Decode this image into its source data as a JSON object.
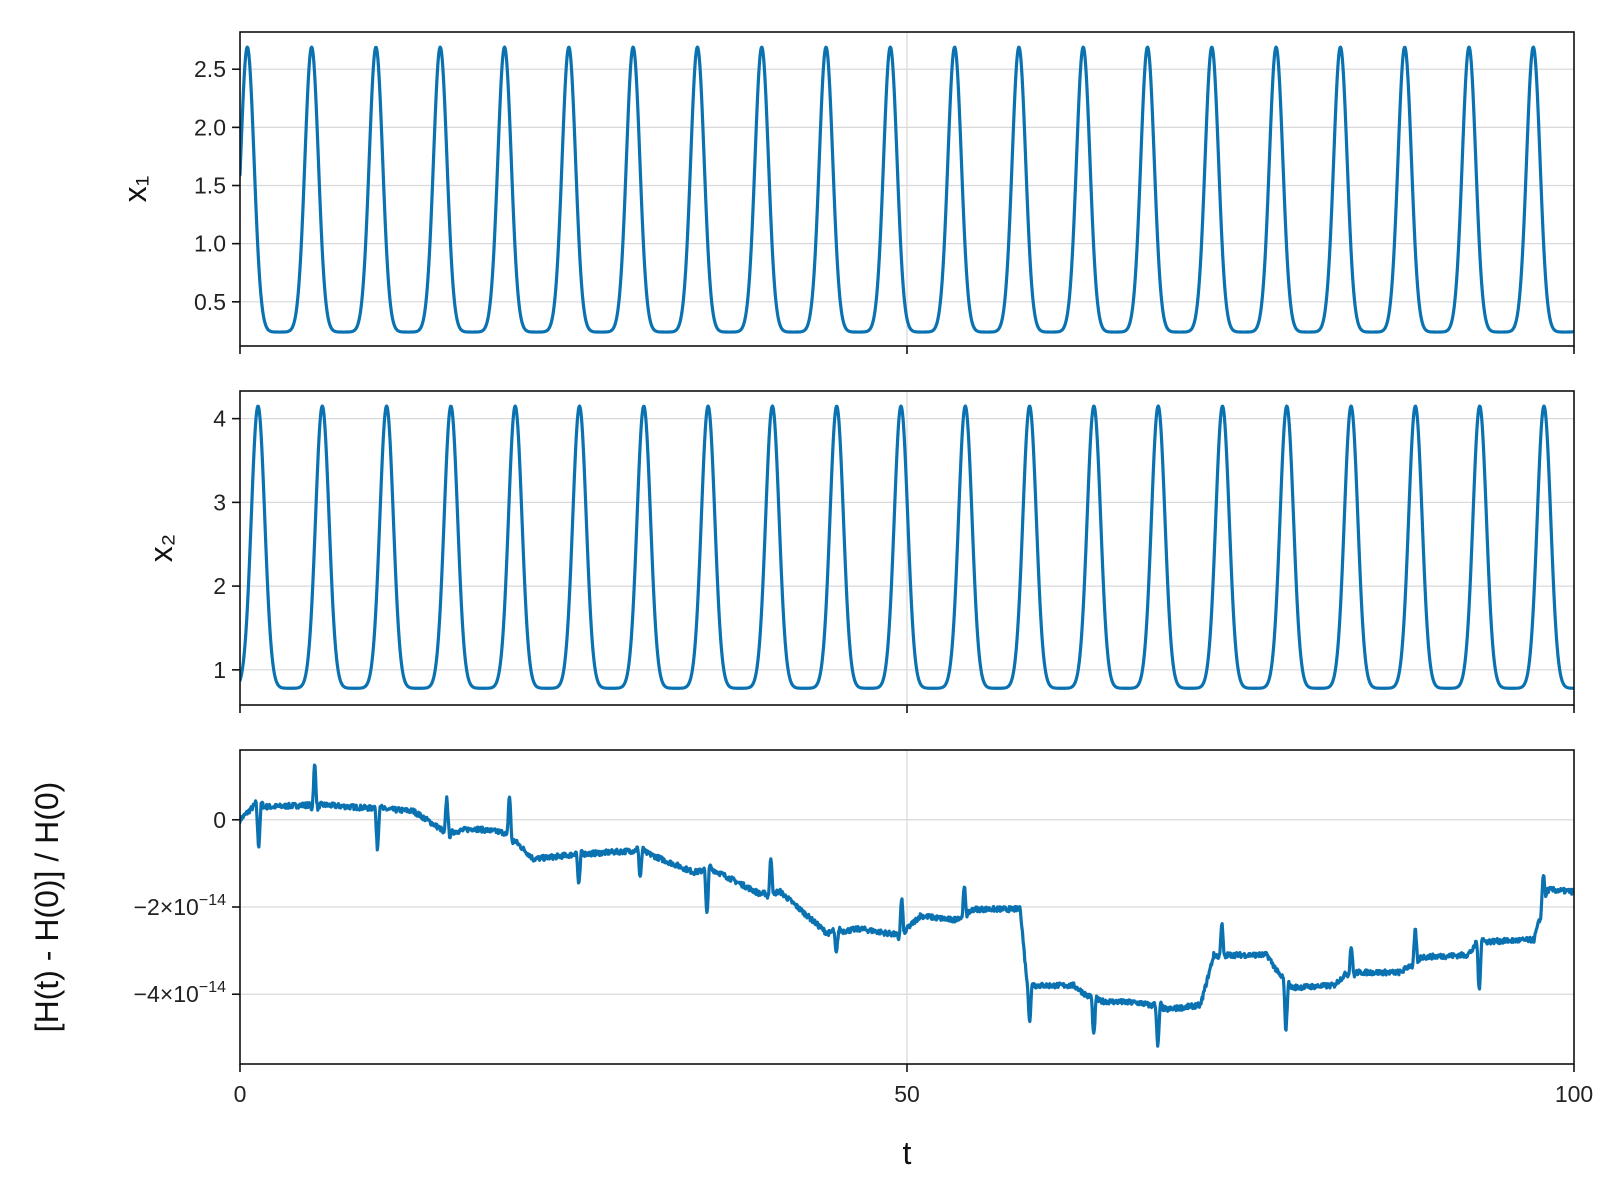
{
  "colors": {
    "series": "#0a72b1",
    "frame": "#111111",
    "grid": "#d9d9d9"
  },
  "chart_data": [
    {
      "type": "line",
      "title": "",
      "xlabel": "",
      "ylabel": "x₁",
      "xlim": [
        0,
        100
      ],
      "ylim": [
        0.12,
        2.82
      ],
      "yticks": [
        0.5,
        1.0,
        1.5,
        2.0,
        2.5
      ],
      "ytick_labels": [
        "0.5",
        "1.0",
        "1.5",
        "2.0",
        "2.5"
      ],
      "xticks": [
        0,
        50,
        100
      ],
      "show_xtick_labels": false,
      "grid": true,
      "series": [
        {
          "style": "periodic",
          "x": [
            0,
            0.5,
            1.0,
            2.0,
            3.5,
            4.6,
            5.2,
            5.4,
            5.6,
            6.0
          ],
          "values": [
            2.0,
            2.6,
            2.4,
            0.75,
            0.25,
            0.45,
            1.6,
            2.35,
            2.7,
            2.3
          ],
          "period": 4.82,
          "peak_times": [
            0.55,
            5.37,
            10.19,
            15.01,
            19.83,
            24.65,
            29.47,
            34.29,
            39.11,
            43.93,
            48.75,
            53.57,
            58.39,
            63.21,
            68.03,
            72.85,
            77.67,
            82.49,
            87.31,
            92.13,
            96.95
          ],
          "max": 2.69,
          "min": 0.24,
          "end_value": 0.37
        }
      ]
    },
    {
      "type": "line",
      "title": "",
      "xlabel": "",
      "ylabel": "x₂",
      "xlim": [
        0,
        100
      ],
      "ylim": [
        0.58,
        4.33
      ],
      "yticks": [
        1,
        2,
        3,
        4
      ],
      "ytick_labels": [
        "1",
        "2",
        "3",
        "4"
      ],
      "xticks": [
        0,
        50,
        100
      ],
      "show_xtick_labels": false,
      "grid": true,
      "series": [
        {
          "style": "periodic",
          "peak_times": [
            1.35,
            6.17,
            10.99,
            15.81,
            20.63,
            25.45,
            30.27,
            35.09,
            39.91,
            44.73,
            49.55,
            54.37,
            59.19,
            64.01,
            68.83,
            73.65,
            78.47,
            83.29,
            88.11,
            92.93,
            97.75
          ],
          "max": 4.15,
          "min": 0.78,
          "start_value": 1.0,
          "end_value": 1.1
        }
      ]
    },
    {
      "type": "line",
      "title": "",
      "xlabel": "t",
      "ylabel": "[H(t) - H(0)] / H(0)",
      "xlim": [
        0,
        100
      ],
      "ylim": [
        -5.6e-14,
        1.6e-14
      ],
      "yticks": [
        0,
        -2e-14,
        -4e-14
      ],
      "ytick_labels": [
        {
          "mantissa": "0",
          "exponent": ""
        },
        {
          "mantissa": "−2×10",
          "exponent": "−14"
        },
        {
          "mantissa": "−4×10",
          "exponent": "−14"
        }
      ],
      "xticks": [
        0,
        50,
        100
      ],
      "xtick_labels": [
        "0",
        "50",
        "100"
      ],
      "grid": true,
      "series": [
        {
          "style": "step-drift",
          "x": [
            0,
            1.0,
            2.5,
            5.8,
            10.5,
            13.0,
            15.5,
            17.5,
            20.0,
            22.0,
            25.0,
            30.0,
            34.0,
            35.5,
            39.0,
            40.5,
            44.0,
            46.5,
            49.5,
            51.0,
            53.5,
            55.0,
            58.5,
            59.0,
            62.5,
            64.0,
            67.5,
            69.5,
            72.0,
            73.0,
            77.0,
            78.5,
            82.0,
            83.0,
            87.0,
            88.5,
            92.0,
            93.0,
            97.0,
            98.0,
            100.0
          ],
          "values": [
            0.0,
            3e-15,
            3e-15,
            3.5e-15,
            2.5e-15,
            2e-15,
            -3e-15,
            -2e-15,
            -3e-15,
            -9e-15,
            -8e-15,
            -7e-15,
            -1.2e-14,
            -1.15e-14,
            -1.7e-14,
            -1.65e-14,
            -2.6e-14,
            -2.5e-14,
            -2.65e-14,
            -2.2e-14,
            -2.3e-14,
            -2.05e-14,
            -2.05e-14,
            -3.8e-14,
            -3.8e-14,
            -4.15e-14,
            -4.2e-14,
            -4.35e-14,
            -4.25e-14,
            -3.1e-14,
            -3.1e-14,
            -3.85e-14,
            -3.8e-14,
            -3.5e-14,
            -3.5e-14,
            -3.15e-14,
            -3.1e-14,
            -2.8e-14,
            -2.75e-14,
            -1.6e-14,
            -1.65e-14
          ],
          "spikes": [
            {
              "t": 1.4,
              "amp": -9e-15
            },
            {
              "t": 5.6,
              "amp": 9e-15
            },
            {
              "t": 10.3,
              "amp": -9e-15
            },
            {
              "t": 15.5,
              "amp": 8e-15
            },
            {
              "t": 20.2,
              "amp": 9e-15
            },
            {
              "t": 25.4,
              "amp": -7e-15
            },
            {
              "t": 30.0,
              "amp": -6e-15
            },
            {
              "t": 35.0,
              "amp": -1e-14
            },
            {
              "t": 39.8,
              "amp": 8e-15
            },
            {
              "t": 44.7,
              "amp": -5e-15
            },
            {
              "t": 49.6,
              "amp": 8e-15
            },
            {
              "t": 54.3,
              "amp": 6e-15
            },
            {
              "t": 59.2,
              "amp": -8e-15
            },
            {
              "t": 64.0,
              "amp": -8e-15
            },
            {
              "t": 68.8,
              "amp": -9e-15
            },
            {
              "t": 73.6,
              "amp": 7e-15
            },
            {
              "t": 78.4,
              "amp": -1e-14
            },
            {
              "t": 83.3,
              "amp": 6e-15
            },
            {
              "t": 88.1,
              "amp": 7e-15
            },
            {
              "t": 92.9,
              "amp": -1.1e-14
            },
            {
              "t": 97.7,
              "amp": 7e-15
            }
          ]
        }
      ]
    }
  ]
}
